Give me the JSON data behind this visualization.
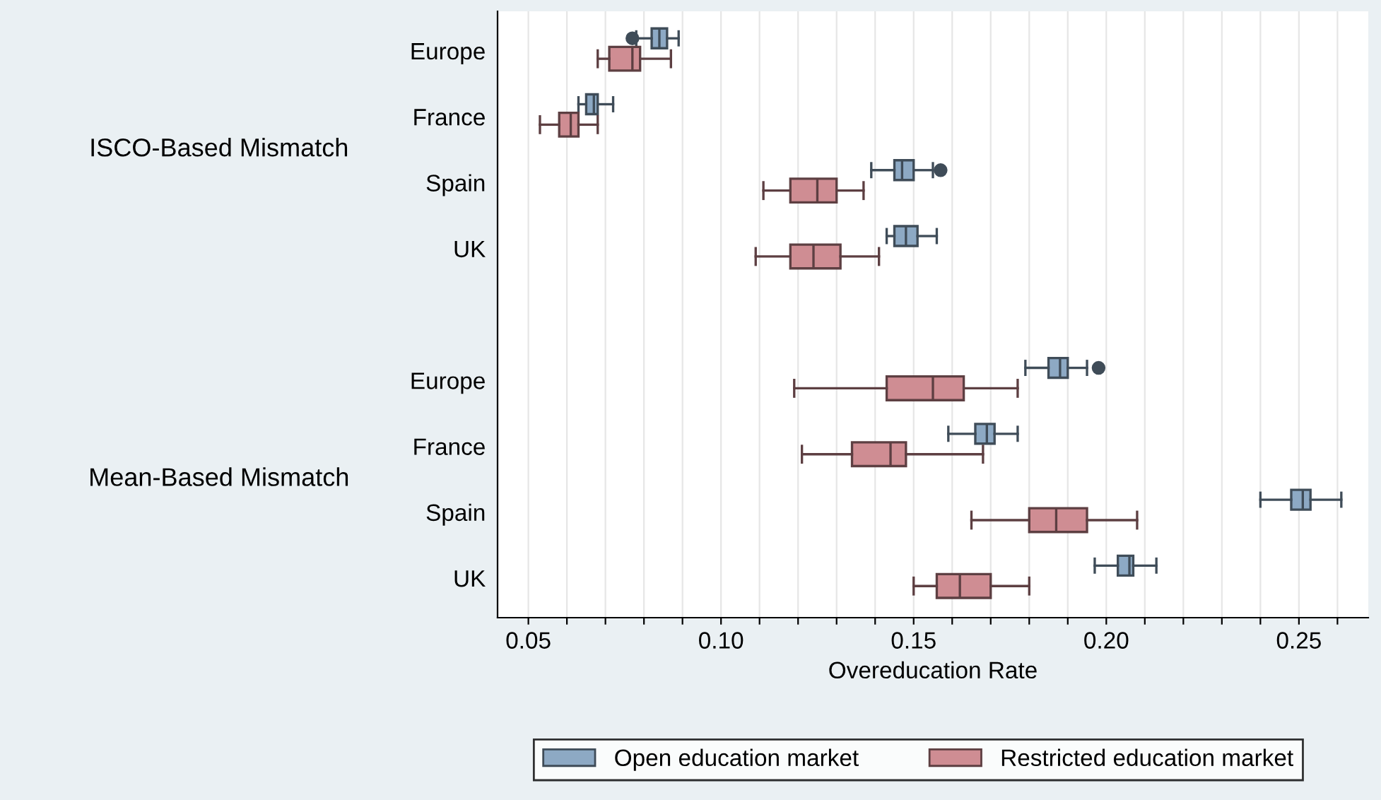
{
  "chart_data": {
    "type": "box",
    "orientation": "horizontal",
    "xlabel": "Overeducation Rate",
    "categories": [
      "Europe",
      "France",
      "Spain",
      "UK",
      null,
      "Europe",
      "France",
      "Spain",
      "UK"
    ],
    "annotations": [
      "ISCO-Based Mismatch",
      "Mean-Based Mismatch"
    ],
    "series": [
      {
        "name": "Open education market",
        "color": "#8da9c4",
        "boxes": [
          {
            "low": 0.078,
            "q1": 0.082,
            "median": 0.084,
            "q3": 0.086,
            "high": 0.089,
            "outliers": [
              0.077
            ]
          },
          {
            "low": 0.063,
            "q1": 0.065,
            "median": 0.067,
            "q3": 0.068,
            "high": 0.072
          },
          {
            "low": 0.139,
            "q1": 0.145,
            "median": 0.147,
            "q3": 0.15,
            "high": 0.155,
            "outliers": [
              0.157
            ]
          },
          {
            "low": 0.143,
            "q1": 0.145,
            "median": 0.148,
            "q3": 0.151,
            "high": 0.156
          },
          null,
          {
            "low": 0.179,
            "q1": 0.185,
            "median": 0.188,
            "q3": 0.19,
            "high": 0.195,
            "outliers": [
              0.198
            ]
          },
          {
            "low": 0.159,
            "q1": 0.166,
            "median": 0.169,
            "q3": 0.171,
            "high": 0.177
          },
          {
            "low": 0.24,
            "q1": 0.248,
            "median": 0.251,
            "q3": 0.253,
            "high": 0.261
          },
          {
            "low": 0.197,
            "q1": 0.203,
            "median": 0.206,
            "q3": 0.207,
            "high": 0.213
          }
        ]
      },
      {
        "name": "Restricted education market",
        "color": "#cf8d93",
        "boxes": [
          {
            "low": 0.068,
            "q1": 0.071,
            "median": 0.077,
            "q3": 0.079,
            "high": 0.087
          },
          {
            "low": 0.053,
            "q1": 0.058,
            "median": 0.061,
            "q3": 0.063,
            "high": 0.068
          },
          {
            "low": 0.111,
            "q1": 0.118,
            "median": 0.125,
            "q3": 0.13,
            "high": 0.137
          },
          {
            "low": 0.109,
            "q1": 0.118,
            "median": 0.124,
            "q3": 0.131,
            "high": 0.141
          },
          null,
          {
            "low": 0.119,
            "q1": 0.143,
            "median": 0.155,
            "q3": 0.163,
            "high": 0.177
          },
          {
            "low": 0.121,
            "q1": 0.134,
            "median": 0.144,
            "q3": 0.148,
            "high": 0.168
          },
          {
            "low": 0.165,
            "q1": 0.18,
            "median": 0.187,
            "q3": 0.195,
            "high": 0.208
          },
          {
            "low": 0.15,
            "q1": 0.156,
            "median": 0.162,
            "q3": 0.17,
            "high": 0.18
          }
        ]
      }
    ],
    "xlim": [
      0.042,
      0.268
    ],
    "xticks": [
      0.05,
      {
        "value": 0.06,
        "label": null
      },
      {
        "value": 0.07,
        "label": null
      },
      {
        "value": 0.08,
        "label": null
      },
      {
        "value": 0.09,
        "label": null
      },
      {
        "value": 0.1,
        "label": "0.10"
      },
      {
        "value": 0.11,
        "label": null
      },
      {
        "value": 0.12,
        "label": null
      },
      {
        "value": 0.13,
        "label": null
      },
      {
        "value": 0.14,
        "label": null
      },
      0.15,
      {
        "value": 0.16,
        "label": null
      },
      {
        "value": 0.17,
        "label": null
      },
      {
        "value": 0.18,
        "label": null
      },
      {
        "value": 0.19,
        "label": null
      },
      {
        "value": 0.2,
        "label": "0.20"
      },
      {
        "value": 0.21,
        "label": null
      },
      {
        "value": 0.22,
        "label": null
      },
      {
        "value": 0.23,
        "label": null
      },
      {
        "value": 0.24,
        "label": null
      },
      0.25,
      {
        "value": 0.26,
        "label": null
      }
    ],
    "grid": "x",
    "legend": "bottom"
  }
}
